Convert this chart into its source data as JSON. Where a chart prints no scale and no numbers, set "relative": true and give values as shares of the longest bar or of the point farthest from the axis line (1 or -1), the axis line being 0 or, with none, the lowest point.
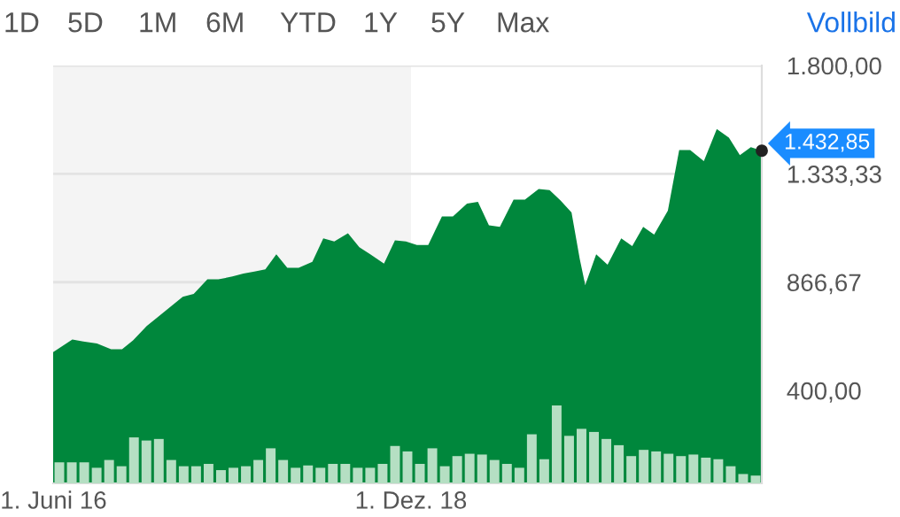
{
  "chart_data": [
    {
      "type": "area",
      "x": [
        "2016-05-31",
        "2016-07-19",
        "2016-08-16",
        "2016-09-20",
        "2016-10-26",
        "2016-11-23",
        "2016-12-21",
        "2017-01-25",
        "2017-02-22",
        "2017-04-27",
        "2017-05-25",
        "2017-06-29",
        "2017-07-27",
        "2017-09-01",
        "2017-09-29",
        "2017-10-27",
        "2017-11-24",
        "2017-12-22",
        "2018-01-19",
        "2018-02-17",
        "2018-03-24",
        "2018-04-21",
        "2018-05-19",
        "2018-06-23",
        "2018-07-22",
        "2018-08-19",
        "2018-09-23",
        "2018-10-21",
        "2018-11-18",
        "2018-12-16",
        "2019-01-14",
        "2019-02-18",
        "2019-03-18",
        "2019-04-23",
        "2019-05-21",
        "2019-06-18",
        "2019-07-16",
        "2019-08-20",
        "2019-09-18",
        "2019-10-23",
        "2019-11-20",
        "2019-12-18",
        "2020-01-15",
        "2020-02-05",
        "2020-02-19",
        "2020-03-18",
        "2020-04-16",
        "2020-05-21",
        "2020-06-18",
        "2020-07-16",
        "2020-08-13",
        "2020-09-17",
        "2020-10-16",
        "2020-11-13",
        "2020-12-18",
        "2021-01-20",
        "2021-02-20",
        "2021-03-20",
        "2021-04-17",
        "2021-05-15"
      ],
      "series": [
        {
          "color": "#00873c",
          "values": [
            565,
            620,
            611,
            603,
            578,
            578,
            616,
            678,
            716,
            804,
            816,
            879,
            879,
            891,
            904,
            912,
            922,
            987,
            929,
            929,
            954,
            1055,
            1042,
            1077,
            1017,
            987,
            947,
            1047,
            1042,
            1027,
            1027,
            1150,
            1150,
            1205,
            1213,
            1112,
            1105,
            1222,
            1222,
            1268,
            1263,
            1218,
            1167,
            967,
            854,
            987,
            942,
            1055,
            1022,
            1105,
            1072,
            1175,
            1436,
            1436,
            1388,
            1526,
            1489,
            1414,
            1448,
            1432.85
          ],
          "value_labels": [
            null,
            null,
            null,
            null,
            null,
            null,
            null,
            null,
            null,
            null,
            null,
            null,
            null,
            null,
            null,
            null,
            null,
            null,
            null,
            null,
            null,
            null,
            null,
            null,
            null,
            null,
            null,
            null,
            null,
            null,
            null,
            null,
            null,
            null,
            null,
            null,
            null,
            null,
            null,
            null,
            null,
            null,
            null,
            null,
            null,
            null,
            null,
            null,
            null,
            null,
            null,
            null,
            null,
            null,
            null,
            null,
            null,
            null,
            null,
            "1.432,85"
          ]
        }
      ],
      "xlim": [
        "2016-05-31",
        "2021-05-15"
      ],
      "xticks": [
        {
          "value": "2016-06-01",
          "label": "1. Juni 16"
        },
        {
          "value": "2018-12-01",
          "label": "1. Dez. 18"
        }
      ],
      "ylim": [
        0,
        1800
      ],
      "yticks": [
        {
          "value": 400,
          "label": "400,00"
        },
        {
          "value": 866.67,
          "label": "866,67"
        },
        {
          "value": 1333.33,
          "label": "1.333,33"
        },
        {
          "value": 1800,
          "label": "1.800,00"
        }
      ],
      "grid": "y",
      "bands": [
        {
          "axis": "x",
          "from": "2016-05-31",
          "to": "2018-12-01",
          "color": "#f4f4f4"
        }
      ],
      "annotations": [
        "1D",
        "5D",
        "1M",
        "6M",
        "YTD",
        "1Y",
        "5Y",
        "Max",
        "Vollbild"
      ]
    },
    {
      "type": "bar",
      "relative": true,
      "tick_labels": false,
      "categories": [
        null,
        null,
        null,
        null,
        null,
        null,
        null,
        null,
        null,
        null,
        null,
        null,
        null,
        null,
        null,
        null,
        null,
        null,
        null,
        null,
        null,
        null,
        null,
        null,
        null,
        null,
        null,
        null,
        null,
        null,
        null,
        null,
        null,
        null,
        null,
        null,
        null,
        null,
        null,
        null,
        null,
        null,
        null,
        null,
        null,
        null,
        null,
        null,
        null,
        null,
        null,
        null,
        null,
        null,
        null,
        null,
        null
      ],
      "series": [
        {
          "color": "#b5dfc3",
          "values": [
            0.27,
            0.27,
            0.27,
            0.2,
            0.3,
            0.22,
            0.59,
            0.55,
            0.57,
            0.3,
            0.22,
            0.22,
            0.25,
            0.17,
            0.2,
            0.22,
            0.3,
            0.45,
            0.3,
            0.2,
            0.23,
            0.2,
            0.25,
            0.25,
            0.2,
            0.2,
            0.25,
            0.48,
            0.41,
            0.25,
            0.45,
            0.22,
            0.35,
            0.38,
            0.37,
            0.3,
            0.25,
            0.2,
            0.63,
            0.31,
            1,
            0.61,
            0.7,
            0.66,
            0.57,
            0.49,
            0.35,
            0.43,
            0.41,
            0.38,
            0.35,
            0.37,
            0.33,
            0.31,
            0.22,
            0.12,
            0.1
          ]
        }
      ]
    }
  ]
}
